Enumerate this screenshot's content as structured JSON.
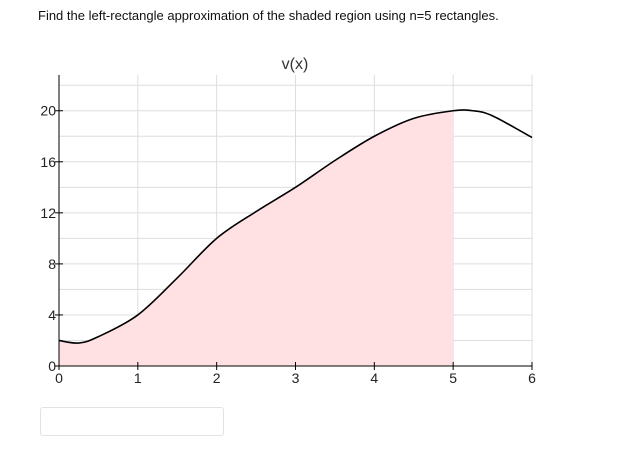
{
  "question": {
    "text": "Find the left-rectangle approximation of the shaded region using n=5 rectangles."
  },
  "answer": {
    "value": ""
  },
  "chart_data": {
    "type": "area",
    "title": "v(x)",
    "xlabel": "",
    "ylabel": "",
    "xlim": [
      0,
      6
    ],
    "ylim": [
      0,
      22.8
    ],
    "x_ticks": [
      0,
      1,
      2,
      3,
      4,
      5,
      6
    ],
    "y_ticks": [
      0,
      4,
      8,
      12,
      16,
      20
    ],
    "grid": true,
    "shaded_interval": [
      0,
      5
    ],
    "curve": {
      "x": [
        0,
        0.25,
        0.5,
        1,
        1.5,
        2,
        2.5,
        3,
        3.5,
        4,
        4.5,
        5,
        5.25,
        5.5,
        6
      ],
      "y": [
        2,
        1.8,
        2.3,
        4,
        6.9,
        10,
        12.1,
        14,
        16.1,
        18,
        19.4,
        20,
        20,
        19.6,
        17.9
      ]
    },
    "colors": {
      "curve": "#000000",
      "shade": "#ffe1e4",
      "grid": "#dddddd",
      "axis": "#000000"
    }
  }
}
